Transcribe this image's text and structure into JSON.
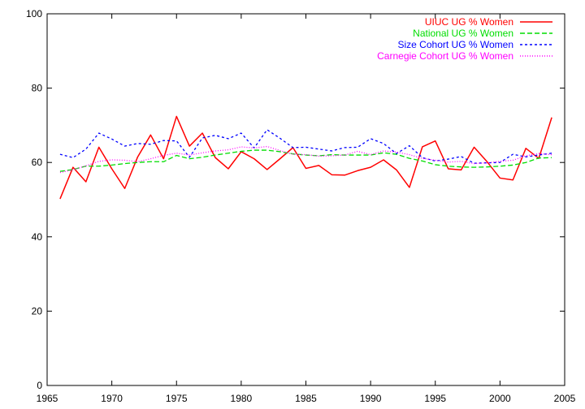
{
  "chart_data": {
    "type": "line",
    "title": "",
    "xlabel": "",
    "ylabel": "",
    "xlim": [
      1965,
      2005
    ],
    "ylim": [
      0,
      100
    ],
    "xticks": [
      1965,
      1970,
      1975,
      1980,
      1985,
      1990,
      1995,
      2000,
      2005
    ],
    "yticks": [
      0,
      20,
      40,
      60,
      80,
      100
    ],
    "grid": false,
    "legend_position": "top-right",
    "x": [
      1966,
      1967,
      1968,
      1969,
      1970,
      1971,
      1972,
      1973,
      1974,
      1975,
      1976,
      1977,
      1978,
      1979,
      1980,
      1981,
      1982,
      1983,
      1984,
      1985,
      1986,
      1987,
      1988,
      1989,
      1990,
      1991,
      1992,
      1993,
      1994,
      1995,
      1996,
      1997,
      1998,
      1999,
      2000,
      2001,
      2002,
      2003,
      2004
    ],
    "series": [
      {
        "name": "UIUC UG % Women",
        "color": "#ff0000",
        "dash": "",
        "values": [
          50.2,
          58.7,
          54.8,
          64.1,
          58.3,
          53.0,
          61.5,
          67.4,
          61.0,
          72.4,
          64.4,
          67.9,
          61.3,
          58.3,
          62.9,
          61.0,
          58.1,
          61.0,
          64.0,
          58.4,
          59.2,
          56.7,
          56.6,
          57.8,
          58.7,
          60.7,
          58.0,
          53.3,
          64.2,
          65.8,
          58.3,
          58.0,
          64.1,
          60.2,
          55.8,
          55.3,
          63.8,
          61.1,
          72.1
        ]
      },
      {
        "name": "National UG % Women",
        "color": "#00dd00",
        "dash": "6,3",
        "values": [
          57.6,
          58.1,
          59.0,
          59.0,
          59.3,
          59.7,
          60.0,
          60.2,
          60.2,
          61.9,
          61.0,
          61.4,
          62.0,
          62.5,
          63.0,
          63.3,
          63.3,
          62.9,
          62.3,
          62.0,
          61.8,
          62.1,
          62.0,
          62.0,
          62.0,
          62.6,
          62.2,
          61.1,
          60.4,
          59.4,
          59.0,
          58.8,
          58.7,
          58.8,
          59.0,
          59.3,
          60.0,
          61.2,
          61.3
        ]
      },
      {
        "name": "Size Cohort UG % Women",
        "color": "#0000ff",
        "dash": "3,3",
        "values": [
          62.2,
          61.3,
          63.6,
          67.9,
          66.3,
          64.4,
          65.1,
          64.9,
          65.9,
          65.8,
          61.4,
          66.6,
          67.3,
          66.4,
          67.9,
          63.9,
          68.8,
          66.5,
          64.0,
          64.1,
          63.6,
          63.1,
          64.0,
          64.1,
          66.4,
          65.1,
          62.4,
          64.5,
          61.3,
          60.4,
          60.9,
          61.6,
          59.8,
          59.9,
          60.0,
          62.2,
          61.5,
          62.0,
          62.5
        ]
      },
      {
        "name": "Carnegie Cohort UG % Women",
        "color": "#ff00ff",
        "dash": "1,2",
        "values": [
          57.3,
          58.0,
          59.1,
          60.3,
          60.7,
          60.6,
          60.2,
          61.0,
          61.9,
          62.5,
          62.0,
          62.6,
          63.1,
          63.4,
          64.2,
          63.9,
          64.3,
          63.2,
          62.2,
          62.1,
          61.7,
          61.8,
          62.0,
          63.0,
          62.1,
          63.1,
          62.8,
          62.1,
          61.1,
          60.6,
          60.1,
          60.3,
          59.7,
          59.9,
          60.3,
          60.6,
          61.8,
          62.4,
          62.1
        ]
      }
    ]
  }
}
